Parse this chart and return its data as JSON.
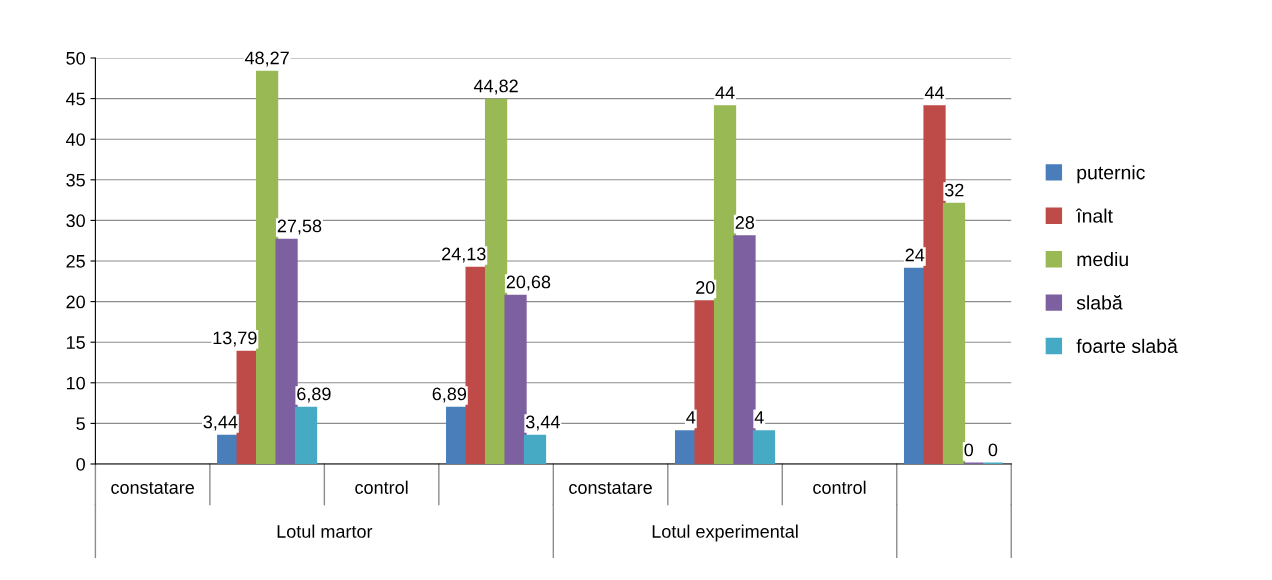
{
  "chart_data": {
    "type": "bar",
    "categories": [
      "constatare",
      null,
      "control",
      null,
      "constatare",
      null,
      "control",
      null
    ],
    "annotations": [
      "Lotul martor",
      "Lotul experimental"
    ],
    "series": [
      {
        "name": "puternic",
        "color": "#4a7ebb",
        "values": [
          null,
          3.44,
          null,
          6.89,
          null,
          4,
          null,
          24
        ],
        "value_labels": [
          null,
          "3,44",
          null,
          "6,89",
          null,
          "4",
          null,
          "24"
        ]
      },
      {
        "name": "înalt",
        "color": "#be4b48",
        "values": [
          null,
          13.79,
          null,
          24.13,
          null,
          20,
          null,
          44
        ],
        "value_labels": [
          null,
          "13,79",
          null,
          "24,13",
          null,
          "20",
          null,
          "44"
        ]
      },
      {
        "name": "mediu",
        "color": "#98b954",
        "values": [
          null,
          48.27,
          null,
          44.82,
          null,
          44,
          null,
          32
        ],
        "value_labels": [
          null,
          "48,27",
          null,
          "44,82",
          null,
          "44",
          null,
          "32"
        ]
      },
      {
        "name": "slabă",
        "color": "#7d60a0",
        "values": [
          null,
          27.58,
          null,
          20.68,
          null,
          28,
          null,
          0
        ],
        "value_labels": [
          null,
          "27,58",
          null,
          "20,68",
          null,
          "28",
          null,
          "0"
        ]
      },
      {
        "name": "foarte slabă",
        "color": "#46aac5",
        "values": [
          null,
          6.89,
          null,
          3.44,
          null,
          4,
          null,
          0
        ],
        "value_labels": [
          null,
          "6,89",
          null,
          "3,44",
          null,
          "4",
          null,
          "0"
        ]
      }
    ],
    "ylim": [
      0,
      50
    ],
    "yticks": [
      0,
      5,
      10,
      15,
      20,
      25,
      30,
      35,
      40,
      45,
      50
    ],
    "grid": "y",
    "legend": "right"
  }
}
